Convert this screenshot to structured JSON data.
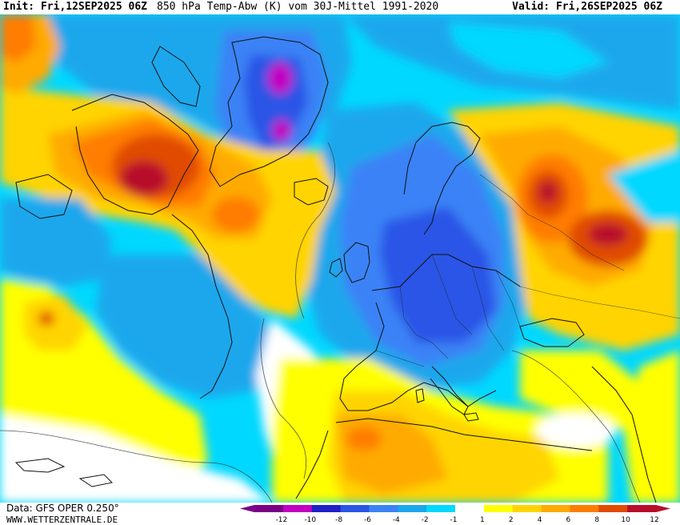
{
  "header": {
    "init": "Init: Fri,12SEP2025 06Z",
    "title": "850 hPa Temp-Abw (K) vom 30J-Mittel 1991-2020",
    "valid": "Valid: Fri,26SEP2025 06Z"
  },
  "footer": {
    "data_source": "Data: GFS OPER 0.250°",
    "website": "WWW.WETTERZENTRALE.DE"
  },
  "legend": {
    "ticks": [
      "-12",
      "-10",
      "-8",
      "-6",
      "-4",
      "-2",
      "-1",
      "1",
      "2",
      "4",
      "6",
      "8",
      "10",
      "12"
    ],
    "colors": [
      "#7a0085",
      "#c200c2",
      "#2020c8",
      "#2a55e6",
      "#3b82f6",
      "#1aa7ec",
      "#00d8ff",
      "#ffffff",
      "#ffff00",
      "#ffd400",
      "#ffaa00",
      "#ff7d00",
      "#e04b00",
      "#b80e2a"
    ]
  }
}
